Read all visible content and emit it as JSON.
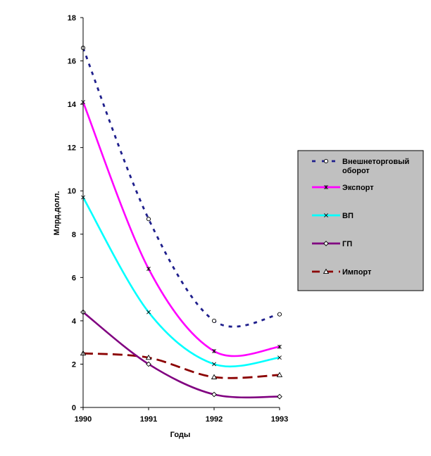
{
  "chart_data": {
    "type": "line",
    "x": [
      1990,
      1991,
      1992,
      1993
    ],
    "xticks": [
      "1990",
      "1991",
      "1992",
      "1993"
    ],
    "yticks": [
      "0",
      "2",
      "4",
      "6",
      "8",
      "10",
      "12",
      "14",
      "16",
      "18"
    ],
    "xlabel": "Годы",
    "ylabel": "Млрд.долл.",
    "ylim": [
      0,
      18
    ],
    "grid": false,
    "legend_position": "right",
    "series": [
      {
        "name": "Внешнеторговый оборот",
        "legend_lines": [
          "Внешнеторговый",
          "оборот"
        ],
        "values": [
          16.6,
          8.7,
          4.0,
          4.3
        ],
        "color": "#1F1F8C",
        "dash": "dotted",
        "marker": "circle"
      },
      {
        "name": "Экспорт",
        "legend_lines": [
          "Экспорт"
        ],
        "values": [
          14.1,
          6.4,
          2.6,
          2.8
        ],
        "color": "#FF00FF",
        "dash": "solid",
        "marker": "star"
      },
      {
        "name": "ВП",
        "legend_lines": [
          "ВП"
        ],
        "values": [
          9.7,
          4.4,
          2.0,
          2.3
        ],
        "color": "#00FFFF",
        "dash": "solid",
        "marker": "x"
      },
      {
        "name": "ГП",
        "legend_lines": [
          "ГП"
        ],
        "values": [
          4.4,
          2.0,
          0.6,
          0.5
        ],
        "color": "#800080",
        "dash": "solid",
        "marker": "diamond"
      },
      {
        "name": "Импорт",
        "legend_lines": [
          "Импорт"
        ],
        "values": [
          2.5,
          2.3,
          1.4,
          1.5
        ],
        "color": "#8B0000",
        "dash": "dashed",
        "marker": "triangle"
      }
    ],
    "legend_bg": "#C0C0C0"
  }
}
